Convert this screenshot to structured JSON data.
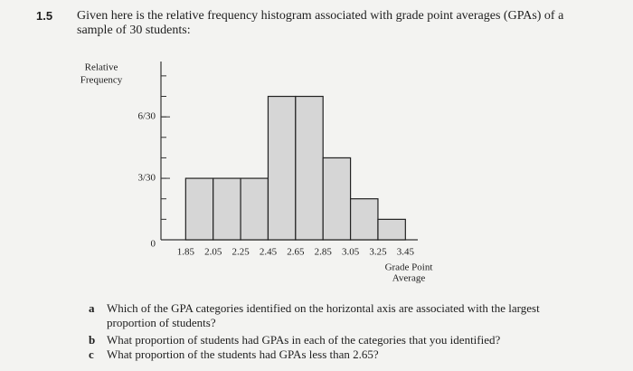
{
  "problem": {
    "number": "1.5",
    "statement": "Given here is the relative frequency histogram associated with grade point averages (GPAs) of a sample of 30 students:",
    "questions": [
      {
        "label": "a",
        "text": "Which of the GPA categories identified on the horizontal axis are associated with the largest proportion of students?"
      },
      {
        "label": "b",
        "text": "What proportion of students had GPAs in each of the categories that you identified?"
      },
      {
        "label": "c",
        "text": "What proportion of the students had GPAs less than 2.65?"
      }
    ]
  },
  "chart_data": {
    "type": "histogram",
    "ylabel": [
      "Relative",
      "Frequency"
    ],
    "xlabel": [
      "Grade Point",
      "Average"
    ],
    "bins": [
      1.85,
      2.05,
      2.25,
      2.45,
      2.65,
      2.85,
      3.05,
      3.25,
      3.45
    ],
    "values": [
      0.1,
      0.1,
      0.1,
      0.2333,
      0.2333,
      0.1333,
      0.0667,
      0.0333
    ],
    "color": "#d6d6d6",
    "xlim": [
      1.67,
      3.54
    ],
    "xticks": [
      1.85,
      2.05,
      2.25,
      2.45,
      2.65,
      2.85,
      3.05,
      3.25,
      3.45
    ],
    "ylim": [
      0,
      0.29
    ],
    "yticks": [
      0,
      {
        "value": 0.1,
        "label": "3/30"
      },
      {
        "value": 0.2,
        "label": "6/30"
      }
    ]
  }
}
